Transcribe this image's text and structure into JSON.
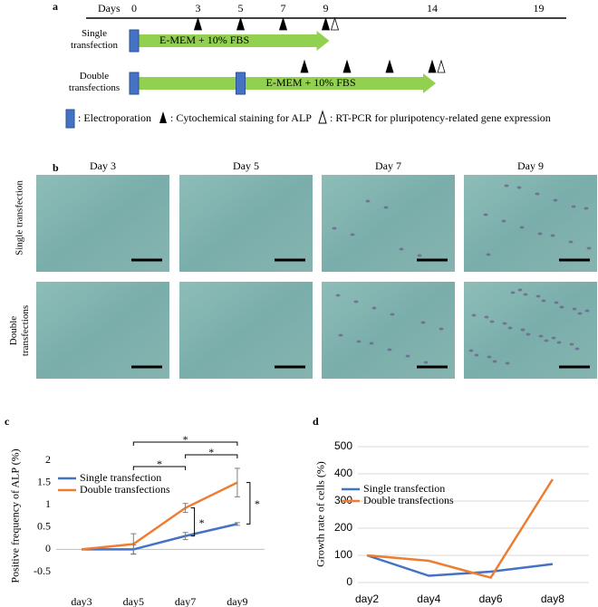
{
  "panel_a": {
    "label": "a",
    "days_label": "Days",
    "days": [
      0,
      3,
      5,
      7,
      9,
      14,
      19
    ],
    "rows": [
      {
        "label": "Single transfection",
        "medium": "E-MEM + 10% FBS",
        "electroporation_days": [
          0
        ],
        "alp_days": [
          3,
          5,
          7,
          9
        ],
        "rtpcr_days": [
          9
        ],
        "end_day": 9
      },
      {
        "label": "Double transfections",
        "medium": "E-MEM + 10% FBS",
        "electroporation_days": [
          0,
          5
        ],
        "alp_days": [
          8,
          10,
          12,
          14
        ],
        "rtpcr_days": [
          14
        ],
        "end_day": 14
      }
    ],
    "legend": [
      ": Electroporation",
      ": Cytochemical staining for ALP",
      ": RT-PCR for pluripotency-related gene expression"
    ]
  },
  "panel_b": {
    "label": "b",
    "columns": [
      "Day 3",
      "Day 5",
      "Day 7",
      "Day 9"
    ],
    "rows": [
      "Single transfection",
      "Double transfections"
    ]
  },
  "panel_c": {
    "label": "c",
    "chart_data": {
      "type": "line",
      "y_label": "Positive frequency of ALP (%)",
      "categories": [
        "day3",
        "day5",
        "day7",
        "day9"
      ],
      "series": [
        {
          "name": "Single transfection",
          "color": "#4472c4",
          "values": [
            0,
            0,
            0.3,
            0.57
          ],
          "errors": [
            0,
            0.1,
            0.08,
            0.03
          ]
        },
        {
          "name": "Double transfections",
          "color": "#ed7d31",
          "values": [
            0,
            0.12,
            0.93,
            1.5
          ],
          "errors": [
            0,
            0.23,
            0.1,
            0.32
          ]
        }
      ],
      "ylim": [
        -0.5,
        2
      ],
      "yticks": [
        -0.5,
        0,
        0.5,
        1,
        1.5,
        2
      ],
      "grid": false,
      "legend": "upper left",
      "brackets": [
        {
          "between": [
            "day5",
            "day9"
          ],
          "label": "*"
        },
        {
          "between": [
            "day7",
            "day9"
          ],
          "label": "*"
        },
        {
          "between": [
            "day5",
            "day7"
          ],
          "label": "*"
        }
      ],
      "vertical_brackets": [
        {
          "at": "day7",
          "label": "*"
        },
        {
          "at": "day9",
          "label": "*"
        }
      ]
    }
  },
  "panel_d": {
    "label": "d",
    "chart_data": {
      "type": "line",
      "y_label": "Growth rate of cells (%)",
      "categories": [
        "day2",
        "day4",
        "day6",
        "day8"
      ],
      "series": [
        {
          "name": "Single transfection",
          "color": "#4472c4",
          "values": [
            100,
            25,
            40,
            68
          ]
        },
        {
          "name": "Double transfections",
          "color": "#ed7d31",
          "values": [
            100,
            80,
            18,
            380
          ]
        }
      ],
      "ylim": [
        0,
        500
      ],
      "yticks": [
        0,
        100,
        200,
        300,
        400,
        500
      ],
      "grid": true,
      "legend": "upper left"
    }
  }
}
